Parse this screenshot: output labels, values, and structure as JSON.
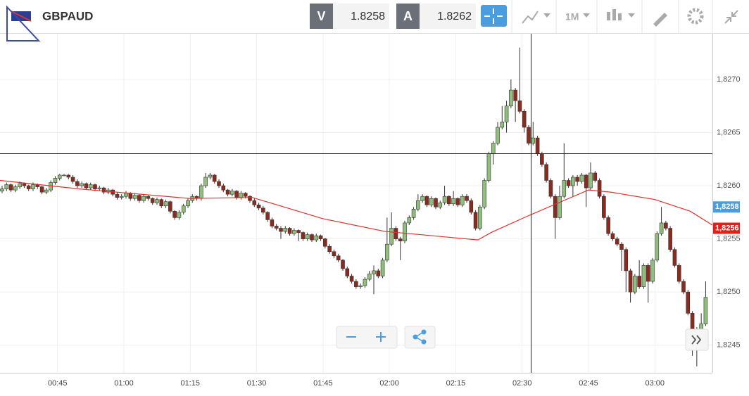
{
  "toolbar": {
    "symbol": "GBPAUD",
    "bid_label": "V",
    "bid": "1.8258",
    "ask_label": "A",
    "ask": "1.8262",
    "interval": "1M"
  },
  "chart_data": {
    "type": "candlestick",
    "x": [
      "00:32",
      "00:33",
      "00:34",
      "00:35",
      "00:36",
      "00:37",
      "00:38",
      "00:39",
      "00:40",
      "00:41",
      "00:42",
      "00:43",
      "00:44",
      "00:45",
      "00:46",
      "00:47",
      "00:48",
      "00:49",
      "00:50",
      "00:51",
      "00:52",
      "00:53",
      "00:54",
      "00:55",
      "00:56",
      "00:57",
      "00:58",
      "00:59",
      "01:00",
      "01:01",
      "01:02",
      "01:03",
      "01:04",
      "01:05",
      "01:06",
      "01:07",
      "01:08",
      "01:09",
      "01:10",
      "01:11",
      "01:12",
      "01:13",
      "01:14",
      "01:15",
      "01:16",
      "01:17",
      "01:18",
      "01:19",
      "01:20",
      "01:21",
      "01:22",
      "01:23",
      "01:24",
      "01:25",
      "01:26",
      "01:27",
      "01:28",
      "01:29",
      "01:30",
      "01:31",
      "01:32",
      "01:33",
      "01:34",
      "01:35",
      "01:36",
      "01:37",
      "01:38",
      "01:39",
      "01:40",
      "01:41",
      "01:42",
      "01:43",
      "01:44",
      "01:45",
      "01:46",
      "01:47",
      "01:48",
      "01:49",
      "01:50",
      "01:51",
      "01:52",
      "01:53",
      "01:54",
      "01:55",
      "01:56",
      "01:57",
      "01:58",
      "01:59",
      "02:00",
      "02:01",
      "02:02",
      "02:03",
      "02:04",
      "02:05",
      "02:06",
      "02:07",
      "02:08",
      "02:09",
      "02:10",
      "02:11",
      "02:12",
      "02:13",
      "02:14",
      "02:15",
      "02:16",
      "02:17",
      "02:18",
      "02:19",
      "02:20",
      "02:21",
      "02:22",
      "02:23",
      "02:24",
      "02:25",
      "02:26",
      "02:27",
      "02:28",
      "02:29",
      "02:30",
      "02:31",
      "02:32",
      "02:33",
      "02:34",
      "02:35",
      "02:36",
      "02:37",
      "02:38",
      "02:39",
      "02:40",
      "02:41",
      "02:42",
      "02:43",
      "02:44",
      "02:45",
      "02:46",
      "02:47",
      "02:48",
      "02:49",
      "02:50",
      "02:51",
      "02:52",
      "02:53",
      "02:54",
      "02:55",
      "02:56",
      "02:57",
      "02:58",
      "02:59",
      "03:00",
      "03:01",
      "03:02",
      "03:03",
      "03:04",
      "03:05",
      "03:06",
      "03:07",
      "03:08",
      "03:09",
      "03:10",
      "03:11"
    ],
    "candles": [
      [
        1.82595,
        1.826,
        1.82593,
        1.82597
      ],
      [
        1.82597,
        1.82603,
        1.82595,
        1.82601
      ],
      [
        1.82601,
        1.82602,
        1.82594,
        1.82596
      ],
      [
        1.82596,
        1.82601,
        1.82594,
        1.82599
      ],
      [
        1.82599,
        1.82604,
        1.82597,
        1.82602
      ],
      [
        1.82602,
        1.82603,
        1.82598,
        1.826
      ],
      [
        1.826,
        1.82601,
        1.82595,
        1.82597
      ],
      [
        1.82597,
        1.82603,
        1.82595,
        1.82601
      ],
      [
        1.82601,
        1.82602,
        1.82597,
        1.82599
      ],
      [
        1.82599,
        1.826,
        1.82592,
        1.82594
      ],
      [
        1.82594,
        1.82598,
        1.82592,
        1.82596
      ],
      [
        1.82596,
        1.82605,
        1.82594,
        1.82603
      ],
      [
        1.82603,
        1.82609,
        1.82601,
        1.82607
      ],
      [
        1.82607,
        1.82611,
        1.82605,
        1.8261
      ],
      [
        1.8261,
        1.82611,
        1.82609,
        1.8261
      ],
      [
        1.8261,
        1.82611,
        1.82606,
        1.82608
      ],
      [
        1.82608,
        1.8261,
        1.82602,
        1.82604
      ],
      [
        1.82604,
        1.82606,
        1.82598,
        1.826
      ],
      [
        1.826,
        1.82604,
        1.82598,
        1.82602
      ],
      [
        1.82602,
        1.82603,
        1.82596,
        1.82598
      ],
      [
        1.82598,
        1.82603,
        1.82596,
        1.82601
      ],
      [
        1.82601,
        1.82602,
        1.82595,
        1.82597
      ],
      [
        1.82597,
        1.826,
        1.82595,
        1.82598
      ],
      [
        1.82598,
        1.82599,
        1.82592,
        1.82594
      ],
      [
        1.82594,
        1.82598,
        1.82592,
        1.82596
      ],
      [
        1.82596,
        1.82597,
        1.8259,
        1.82592
      ],
      [
        1.82592,
        1.82594,
        1.82587,
        1.82589
      ],
      [
        1.82589,
        1.82592,
        1.82587,
        1.8259
      ],
      [
        1.8259,
        1.82595,
        1.82588,
        1.82593
      ],
      [
        1.82593,
        1.82594,
        1.82586,
        1.82588
      ],
      [
        1.82588,
        1.82593,
        1.82586,
        1.82591
      ],
      [
        1.82591,
        1.82592,
        1.82584,
        1.82586
      ],
      [
        1.82586,
        1.82592,
        1.82584,
        1.8259
      ],
      [
        1.8259,
        1.82591,
        1.82586,
        1.82588
      ],
      [
        1.82588,
        1.82589,
        1.82582,
        1.82584
      ],
      [
        1.82584,
        1.82589,
        1.82582,
        1.82587
      ],
      [
        1.82587,
        1.82588,
        1.82579,
        1.82581
      ],
      [
        1.82581,
        1.82587,
        1.82579,
        1.82585
      ],
      [
        1.82585,
        1.82586,
        1.82574,
        1.82576
      ],
      [
        1.82576,
        1.82577,
        1.82568,
        1.8257
      ],
      [
        1.8257,
        1.82577,
        1.82568,
        1.82575
      ],
      [
        1.82575,
        1.82583,
        1.82573,
        1.82581
      ],
      [
        1.82581,
        1.82588,
        1.82579,
        1.82586
      ],
      [
        1.82586,
        1.82592,
        1.82584,
        1.8259
      ],
      [
        1.8259,
        1.82591,
        1.82586,
        1.82588
      ],
      [
        1.82588,
        1.82602,
        1.82586,
        1.826
      ],
      [
        1.826,
        1.82612,
        1.82598,
        1.82608
      ],
      [
        1.82608,
        1.82612,
        1.82606,
        1.8261
      ],
      [
        1.8261,
        1.82611,
        1.82602,
        1.82604
      ],
      [
        1.82604,
        1.82606,
        1.82598,
        1.826
      ],
      [
        1.826,
        1.82602,
        1.82594,
        1.82596
      ],
      [
        1.82596,
        1.82597,
        1.8259,
        1.82592
      ],
      [
        1.82592,
        1.82597,
        1.8259,
        1.82595
      ],
      [
        1.82595,
        1.82596,
        1.82587,
        1.82589
      ],
      [
        1.82589,
        1.82595,
        1.82587,
        1.82593
      ],
      [
        1.82593,
        1.82594,
        1.82588,
        1.8259
      ],
      [
        1.8259,
        1.82591,
        1.82584,
        1.82586
      ],
      [
        1.82586,
        1.82588,
        1.8258,
        1.82582
      ],
      [
        1.82582,
        1.82584,
        1.82577,
        1.82579
      ],
      [
        1.82579,
        1.82581,
        1.82573,
        1.82575
      ],
      [
        1.82575,
        1.82576,
        1.82566,
        1.82568
      ],
      [
        1.82568,
        1.8257,
        1.8256,
        1.82562
      ],
      [
        1.82562,
        1.82564,
        1.82558,
        1.8256
      ],
      [
        1.8256,
        1.82562,
        1.8255,
        1.82557
      ],
      [
        1.82557,
        1.82562,
        1.82555,
        1.8256
      ],
      [
        1.8256,
        1.82561,
        1.82553,
        1.82555
      ],
      [
        1.82555,
        1.8256,
        1.82553,
        1.82558
      ],
      [
        1.82558,
        1.82559,
        1.82548,
        1.82556
      ],
      [
        1.82556,
        1.82557,
        1.82548,
        1.8255
      ],
      [
        1.8255,
        1.82556,
        1.82548,
        1.82554
      ],
      [
        1.82554,
        1.82555,
        1.82547,
        1.82549
      ],
      [
        1.82549,
        1.82555,
        1.82547,
        1.82553
      ],
      [
        1.82553,
        1.82554,
        1.82548,
        1.8255
      ],
      [
        1.8255,
        1.82551,
        1.82541,
        1.82543
      ],
      [
        1.82543,
        1.82545,
        1.82536,
        1.82538
      ],
      [
        1.82538,
        1.8254,
        1.82532,
        1.82534
      ],
      [
        1.82534,
        1.82536,
        1.82528,
        1.8253
      ],
      [
        1.8253,
        1.82531,
        1.8252,
        1.82522
      ],
      [
        1.82522,
        1.82524,
        1.82513,
        1.82515
      ],
      [
        1.82515,
        1.82517,
        1.82508,
        1.8251
      ],
      [
        1.8251,
        1.82512,
        1.82503,
        1.82505
      ],
      [
        1.82505,
        1.82508,
        1.82503,
        1.82506
      ],
      [
        1.82506,
        1.82514,
        1.82504,
        1.82512
      ],
      [
        1.82512,
        1.8252,
        1.8251,
        1.82517
      ],
      [
        1.82517,
        1.82525,
        1.82498,
        1.8252
      ],
      [
        1.8252,
        1.82522,
        1.82513,
        1.82515
      ],
      [
        1.82515,
        1.82532,
        1.82513,
        1.8253
      ],
      [
        1.8253,
        1.8257,
        1.82528,
        1.82545
      ],
      [
        1.82545,
        1.82575,
        1.82543,
        1.8256
      ],
      [
        1.8256,
        1.82562,
        1.82548,
        1.8255
      ],
      [
        1.8255,
        1.82552,
        1.8253,
        1.82548
      ],
      [
        1.82548,
        1.82567,
        1.82546,
        1.82565
      ],
      [
        1.82565,
        1.82572,
        1.82563,
        1.8257
      ],
      [
        1.8257,
        1.8258,
        1.82568,
        1.82578
      ],
      [
        1.82578,
        1.82592,
        1.82576,
        1.82586
      ],
      [
        1.82586,
        1.82592,
        1.82584,
        1.8259
      ],
      [
        1.8259,
        1.82591,
        1.8258,
        1.82582
      ],
      [
        1.82582,
        1.8259,
        1.8258,
        1.82588
      ],
      [
        1.82588,
        1.82589,
        1.82578,
        1.8258
      ],
      [
        1.8258,
        1.82586,
        1.82578,
        1.82584
      ],
      [
        1.82584,
        1.826,
        1.82582,
        1.8259
      ],
      [
        1.8259,
        1.82591,
        1.82581,
        1.82583
      ],
      [
        1.82583,
        1.82595,
        1.82581,
        1.82588
      ],
      [
        1.82588,
        1.82589,
        1.8258,
        1.82582
      ],
      [
        1.82582,
        1.82592,
        1.8258,
        1.8259
      ],
      [
        1.8259,
        1.82592,
        1.82584,
        1.82586
      ],
      [
        1.82586,
        1.82588,
        1.82573,
        1.82575
      ],
      [
        1.82575,
        1.82577,
        1.82558,
        1.8256
      ],
      [
        1.8256,
        1.82582,
        1.82558,
        1.8258
      ],
      [
        1.8258,
        1.82607,
        1.82578,
        1.82605
      ],
      [
        1.82605,
        1.82632,
        1.82603,
        1.8263
      ],
      [
        1.8263,
        1.82642,
        1.8262,
        1.8264
      ],
      [
        1.8264,
        1.8266,
        1.82638,
        1.82655
      ],
      [
        1.82655,
        1.82675,
        1.82653,
        1.8266
      ],
      [
        1.8266,
        1.8268,
        1.8265,
        1.82675
      ],
      [
        1.82675,
        1.827,
        1.82673,
        1.8269
      ],
      [
        1.8269,
        1.82692,
        1.8266,
        1.8268
      ],
      [
        1.8268,
        1.8273,
        1.82668,
        1.8267
      ],
      [
        1.8267,
        1.82672,
        1.8265,
        1.82655
      ],
      [
        1.82655,
        1.82657,
        1.82638,
        1.8264
      ],
      [
        1.8264,
        1.8266,
        1.82638,
        1.82645
      ],
      [
        1.82645,
        1.82647,
        1.82628,
        1.8263
      ],
      [
        1.8263,
        1.82632,
        1.82618,
        1.8262
      ],
      [
        1.8262,
        1.82622,
        1.82603,
        1.82605
      ],
      [
        1.82605,
        1.82607,
        1.82588,
        1.8259
      ],
      [
        1.8259,
        1.82592,
        1.8255,
        1.8257
      ],
      [
        1.8257,
        1.826,
        1.82568,
        1.8259
      ],
      [
        1.8259,
        1.8264,
        1.82588,
        1.82605
      ],
      [
        1.82605,
        1.82607,
        1.82598,
        1.826
      ],
      [
        1.826,
        1.8261,
        1.8259,
        1.82608
      ],
      [
        1.82608,
        1.8261,
        1.826,
        1.82604
      ],
      [
        1.82604,
        1.82612,
        1.82602,
        1.8261
      ],
      [
        1.8261,
        1.82611,
        1.8258,
        1.82598
      ],
      [
        1.82598,
        1.82622,
        1.82596,
        1.82612
      ],
      [
        1.82612,
        1.82614,
        1.82603,
        1.82605
      ],
      [
        1.82605,
        1.82607,
        1.82588,
        1.8259
      ],
      [
        1.8259,
        1.82592,
        1.82568,
        1.8257
      ],
      [
        1.8257,
        1.82572,
        1.82553,
        1.82555
      ],
      [
        1.82555,
        1.82557,
        1.82548,
        1.8255
      ],
      [
        1.8255,
        1.82552,
        1.82543,
        1.82545
      ],
      [
        1.82545,
        1.82547,
        1.8252,
        1.8254
      ],
      [
        1.8254,
        1.82542,
        1.825,
        1.8252
      ],
      [
        1.8252,
        1.82522,
        1.8249,
        1.825
      ],
      [
        1.825,
        1.82517,
        1.82498,
        1.82515
      ],
      [
        1.82515,
        1.8253,
        1.82503,
        1.82505
      ],
      [
        1.82505,
        1.82527,
        1.82503,
        1.82525
      ],
      [
        1.82525,
        1.82527,
        1.8249,
        1.8251
      ],
      [
        1.8251,
        1.82532,
        1.82508,
        1.8253
      ],
      [
        1.8253,
        1.82557,
        1.82528,
        1.82555
      ],
      [
        1.82555,
        1.8258,
        1.82553,
        1.82565
      ],
      [
        1.82565,
        1.82567,
        1.82558,
        1.8256
      ],
      [
        1.8256,
        1.82562,
        1.82538,
        1.8254
      ],
      [
        1.8254,
        1.82542,
        1.82523,
        1.82525
      ],
      [
        1.82525,
        1.82527,
        1.82508,
        1.8251
      ],
      [
        1.8251,
        1.82512,
        1.82498,
        1.825
      ],
      [
        1.825,
        1.82502,
        1.82478,
        1.8248
      ],
      [
        1.8248,
        1.82482,
        1.8244,
        1.82465
      ],
      [
        1.82465,
        1.82467,
        1.8243,
        1.8246
      ],
      [
        1.8246,
        1.8248,
        1.82458,
        1.8247
      ],
      [
        1.8247,
        1.8251,
        1.82468,
        1.82495
      ]
    ],
    "ma": {
      "color": "#e0302a",
      "x": [
        "00:32",
        "00:50",
        "01:15",
        "01:29",
        "01:45",
        "01:59",
        "02:07",
        "02:20",
        "02:23",
        "02:31",
        "02:45",
        "02:50",
        "03:00",
        "03:08",
        "03:13"
      ],
      "values": [
        1.82605,
        1.82597,
        1.82588,
        1.82589,
        1.82569,
        1.82557,
        1.82554,
        1.82549,
        1.82556,
        1.82571,
        1.82596,
        1.82594,
        1.82587,
        1.82576,
        1.82563
      ]
    },
    "up_color": "#8fbf7a",
    "down_color": "#8b2a1e",
    "xlim": [
      "00:32",
      "03:13"
    ],
    "xticks": [
      "00:45",
      "01:00",
      "01:15",
      "01:30",
      "01:45",
      "02:00",
      "02:15",
      "02:30",
      "02:45",
      "03:00"
    ],
    "ylim": [
      1.82424,
      1.82743
    ],
    "yticks": [
      {
        "value": 1.8245,
        "label": "1,8245"
      },
      {
        "value": 1.825,
        "label": "1,8250"
      },
      {
        "value": 1.8255,
        "label": "1,8255"
      },
      {
        "value": 1.826,
        "label": "1,8260"
      },
      {
        "value": 1.8265,
        "label": "1,8265"
      },
      {
        "value": 1.827,
        "label": "1,8270"
      }
    ],
    "grid": true,
    "price_tags": [
      {
        "value": 1.8258,
        "label": "1,8258",
        "color": "#4a9ee0"
      },
      {
        "value": 1.8256,
        "label": "1,8256",
        "color": "#e0201a"
      }
    ]
  }
}
